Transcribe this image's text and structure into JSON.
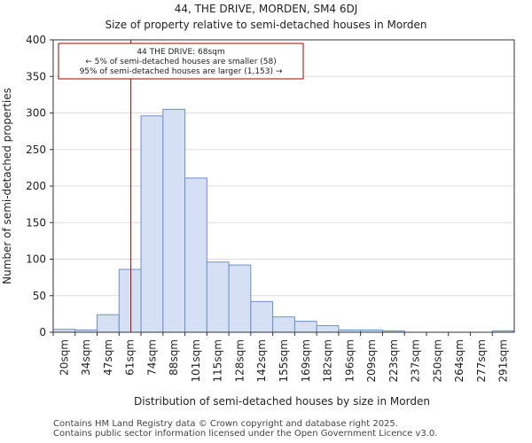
{
  "chart_data": {
    "type": "bar",
    "title": "44, THE DRIVE, MORDEN, SM4 6DJ",
    "subtitle": "Size of property relative to semi-detached houses in Morden",
    "xlabel": "Distribution of semi-detached houses by size in Morden",
    "ylabel": "Number of semi-detached properties",
    "ylim": [
      0,
      400
    ],
    "yticks": [
      0,
      50,
      100,
      150,
      200,
      250,
      300,
      350,
      400
    ],
    "categories": [
      "20sqm",
      "34sqm",
      "47sqm",
      "61sqm",
      "74sqm",
      "88sqm",
      "101sqm",
      "115sqm",
      "128sqm",
      "142sqm",
      "155sqm",
      "169sqm",
      "182sqm",
      "196sqm",
      "209sqm",
      "223sqm",
      "237sqm",
      "250sqm",
      "264sqm",
      "277sqm",
      "291sqm"
    ],
    "values": [
      4,
      3,
      24,
      86,
      296,
      305,
      211,
      96,
      92,
      42,
      21,
      15,
      9,
      3,
      3,
      2,
      0,
      0,
      0,
      0,
      2
    ],
    "bar_color": "#d6e0f5",
    "bar_edge_color": "#6f8fc8",
    "marker": {
      "value_sqm": 68,
      "color": "#aa0000",
      "annotation_lines": [
        "44 THE DRIVE: 68sqm",
        "← 5% of semi-detached houses are smaller (58)",
        "95% of semi-detached houses are larger (1,153) →"
      ]
    }
  },
  "footer": {
    "line1": "Contains HM Land Registry data © Crown copyright and database right 2025.",
    "line2": "Contains public sector information licensed under the Open Government Licence v3.0."
  }
}
